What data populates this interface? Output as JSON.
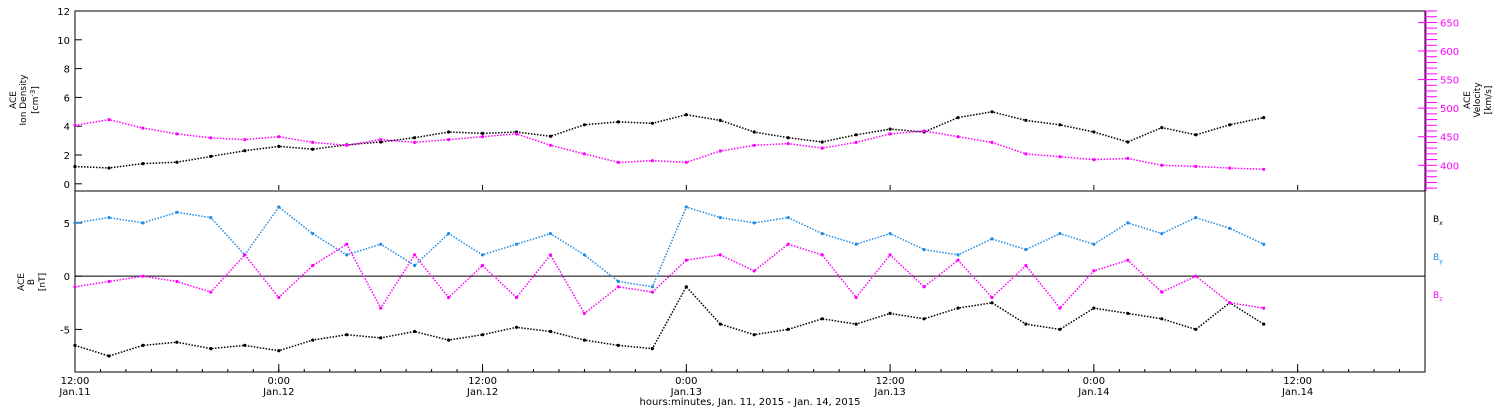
{
  "colors": {
    "black": "#000000",
    "magenta": "#ff00ff",
    "blue": "#1e8ce6",
    "axis": "#000000"
  },
  "x_axis": {
    "title": "hours:minutes, Jan. 11, 2015 - Jan. 14, 2015",
    "ticks": [
      {
        "time": "12:00",
        "date": "Jan.11",
        "hours": 0
      },
      {
        "time": "0:00",
        "date": "Jan.12",
        "hours": 12
      },
      {
        "time": "12:00",
        "date": "Jan.12",
        "hours": 24
      },
      {
        "time": "0:00",
        "date": "Jan.13",
        "hours": 36
      },
      {
        "time": "12:00",
        "date": "Jan.13",
        "hours": 48
      },
      {
        "time": "0:00",
        "date": "Jan.14",
        "hours": 60
      },
      {
        "time": "12:00",
        "date": "Jan.14",
        "hours": 72
      }
    ],
    "range_hours": [
      0,
      79.5
    ]
  },
  "chart_data": [
    {
      "type": "scatter",
      "panel": "top",
      "left_axis": {
        "label_line1": "ACE",
        "label_line2": "Ion Density",
        "unit_main": "[cm",
        "unit_sup": "-3",
        "unit_end": "]",
        "ylim": [
          -0.5,
          12
        ],
        "ticks": [
          0,
          2,
          4,
          6,
          8,
          10,
          12
        ]
      },
      "right_axis": {
        "label_line1": "ACE",
        "label_line2": "Velocity",
        "unit": "[km/s]",
        "ylim": [
          355,
          670
        ],
        "ticks": [
          400,
          450,
          500,
          550,
          600,
          650
        ]
      },
      "series": [
        {
          "color_key": "black",
          "axis": "left",
          "x": [
            0,
            2,
            4,
            6,
            8,
            10,
            12,
            14,
            16,
            18,
            20,
            22,
            24,
            26,
            28,
            30,
            32,
            34,
            36,
            38,
            40,
            42,
            44,
            46,
            48,
            50,
            52,
            54,
            56,
            58,
            60,
            62,
            64,
            66,
            68,
            70
          ],
          "y": [
            1.2,
            1.1,
            1.4,
            1.5,
            1.9,
            2.3,
            2.6,
            2.4,
            2.7,
            2.9,
            3.2,
            3.6,
            3.5,
            3.6,
            3.3,
            4.1,
            4.3,
            4.2,
            4.8,
            4.4,
            3.6,
            3.2,
            2.9,
            3.4,
            3.8,
            3.6,
            4.6,
            5.0,
            4.4,
            4.1,
            3.6,
            2.9,
            3.9,
            3.4,
            4.1,
            4.6
          ]
        }
      ]
    },
    {
      "type": "scatter",
      "panel": "top",
      "series": [
        {
          "color_key": "magenta",
          "axis": "right",
          "x": [
            0,
            2,
            4,
            6,
            8,
            10,
            12,
            14,
            16,
            18,
            20,
            22,
            24,
            26,
            28,
            30,
            32,
            34,
            36,
            38,
            40,
            42,
            44,
            46,
            48,
            50,
            52,
            54,
            56,
            58,
            60,
            62,
            64,
            66,
            68,
            70
          ],
          "y": [
            470,
            480,
            465,
            455,
            448,
            445,
            450,
            440,
            435,
            445,
            440,
            445,
            450,
            455,
            435,
            420,
            405,
            408,
            405,
            425,
            435,
            438,
            430,
            440,
            455,
            460,
            450,
            440,
            420,
            415,
            410,
            412,
            400,
            398,
            395,
            393
          ]
        }
      ]
    },
    {
      "type": "scatter",
      "panel": "bottom",
      "left_axis": {
        "label_line1": "ACE",
        "label_line2": "B",
        "unit": "[nT]",
        "ylim": [
          -9,
          8
        ],
        "ticks": [
          5,
          0,
          -5
        ]
      },
      "zero_line": true,
      "legend": [
        {
          "main": "B",
          "sub": "x",
          "color_key": "black"
        },
        {
          "main": "B",
          "sub": "y",
          "color_key": "blue"
        },
        {
          "main": "B",
          "sub": "z",
          "color_key": "magenta"
        }
      ],
      "series": [
        {
          "color_key": "black",
          "x": [
            0,
            2,
            4,
            6,
            8,
            10,
            12,
            14,
            16,
            18,
            20,
            22,
            24,
            26,
            28,
            30,
            32,
            34,
            36,
            38,
            40,
            42,
            44,
            46,
            48,
            50,
            52,
            54,
            56,
            58,
            60,
            62,
            64,
            66,
            68,
            70
          ],
          "y": [
            -6.5,
            -7.5,
            -6.5,
            -6.2,
            -6.8,
            -6.5,
            -7.0,
            -6.0,
            -5.5,
            -5.8,
            -5.2,
            -6.0,
            -5.5,
            -4.8,
            -5.2,
            -6.0,
            -6.5,
            -6.8,
            -1.0,
            -4.5,
            -5.5,
            -5.0,
            -4.0,
            -4.5,
            -3.5,
            -4.0,
            -3.0,
            -2.5,
            -4.5,
            -5.0,
            -3.0,
            -3.5,
            -4.0,
            -5.0,
            -2.5,
            -4.5
          ]
        },
        {
          "color_key": "blue",
          "x": [
            0,
            2,
            4,
            6,
            8,
            10,
            12,
            14,
            16,
            18,
            20,
            22,
            24,
            26,
            28,
            30,
            32,
            34,
            36,
            38,
            40,
            42,
            44,
            46,
            48,
            50,
            52,
            54,
            56,
            58,
            60,
            62,
            64,
            66,
            68,
            70
          ],
          "y": [
            5.0,
            5.5,
            5.0,
            6.0,
            5.5,
            2.0,
            6.5,
            4.0,
            2.0,
            3.0,
            1.0,
            4.0,
            2.0,
            3.0,
            4.0,
            2.0,
            -0.5,
            -1.0,
            6.5,
            5.5,
            5.0,
            5.5,
            4.0,
            3.0,
            4.0,
            2.5,
            2.0,
            3.5,
            2.5,
            4.0,
            3.0,
            5.0,
            4.0,
            5.5,
            4.5,
            3.0
          ]
        },
        {
          "color_key": "magenta",
          "x": [
            0,
            2,
            4,
            6,
            8,
            10,
            12,
            14,
            16,
            18,
            20,
            22,
            24,
            26,
            28,
            30,
            32,
            34,
            36,
            38,
            40,
            42,
            44,
            46,
            48,
            50,
            52,
            54,
            56,
            58,
            60,
            62,
            64,
            66,
            68,
            70
          ],
          "y": [
            -1.0,
            -0.5,
            0.0,
            -0.5,
            -1.5,
            2.0,
            -2.0,
            1.0,
            3.0,
            -3.0,
            2.0,
            -2.0,
            1.0,
            -2.0,
            2.0,
            -3.5,
            -1.0,
            -1.5,
            1.5,
            2.0,
            0.5,
            3.0,
            2.0,
            -2.0,
            2.0,
            -1.0,
            1.5,
            -2.0,
            1.0,
            -3.0,
            0.5,
            1.5,
            -1.5,
            0.0,
            -2.5,
            -3.0
          ]
        }
      ]
    }
  ]
}
